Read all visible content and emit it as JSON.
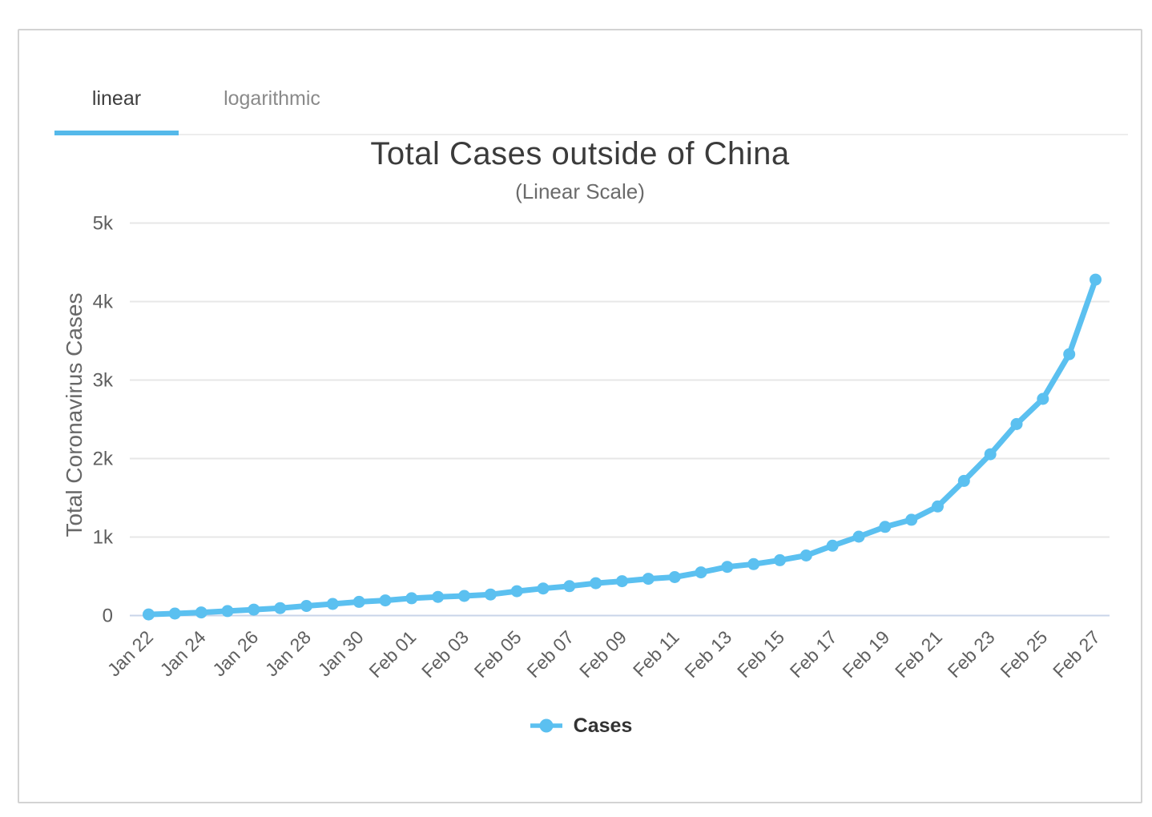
{
  "tabs": {
    "items": [
      {
        "label": "linear",
        "active": true
      },
      {
        "label": "logarithmic",
        "active": false
      }
    ]
  },
  "chart": {
    "title": "Total Cases outside of China",
    "subtitle": "(Linear Scale)",
    "y_axis_title": "Total Coronavirus Cases",
    "legend_label": "Cases"
  },
  "colors": {
    "series_blue": "#5bc0f0",
    "tab_accent": "#55b9ea",
    "gridline": "#e7e7e7",
    "axis_line": "#c9d4e8",
    "title_text": "#3b3b3b",
    "muted_text": "#686868",
    "tick_text": "#5f5f5f"
  },
  "chart_data": {
    "type": "line",
    "title": "Total Cases outside of China",
    "subtitle": "(Linear Scale)",
    "xlabel": "",
    "ylabel": "Total Coronavirus Cases",
    "ylim": [
      0,
      5000
    ],
    "grid": "horizontal",
    "legend_position": "bottom",
    "marker": "circle",
    "x_tick_interval": 2,
    "yticks": {
      "values": [
        0,
        1000,
        2000,
        3000,
        4000,
        5000
      ],
      "labels": [
        "0",
        "1k",
        "2k",
        "3k",
        "4k",
        "5k"
      ]
    },
    "categories": [
      "Jan 22",
      "Jan 23",
      "Jan 24",
      "Jan 25",
      "Jan 26",
      "Jan 27",
      "Jan 28",
      "Jan 29",
      "Jan 30",
      "Jan 31",
      "Feb 01",
      "Feb 02",
      "Feb 03",
      "Feb 04",
      "Feb 05",
      "Feb 06",
      "Feb 07",
      "Feb 08",
      "Feb 09",
      "Feb 10",
      "Feb 11",
      "Feb 12",
      "Feb 13",
      "Feb 14",
      "Feb 15",
      "Feb 16",
      "Feb 17",
      "Feb 18",
      "Feb 19",
      "Feb 20",
      "Feb 21",
      "Feb 22",
      "Feb 23",
      "Feb 24",
      "Feb 25",
      "Feb 26",
      "Feb 27"
    ],
    "series": [
      {
        "name": "Cases",
        "color": "#5bc0f0",
        "values": [
          14,
          25,
          40,
          57,
          75,
          95,
          122,
          148,
          175,
          193,
          220,
          238,
          250,
          268,
          310,
          345,
          375,
          412,
          438,
          468,
          490,
          550,
          620,
          655,
          705,
          765,
          890,
          1005,
          1130,
          1220,
          1390,
          1715,
          2055,
          2440,
          2760,
          3330,
          4280
        ]
      }
    ]
  }
}
